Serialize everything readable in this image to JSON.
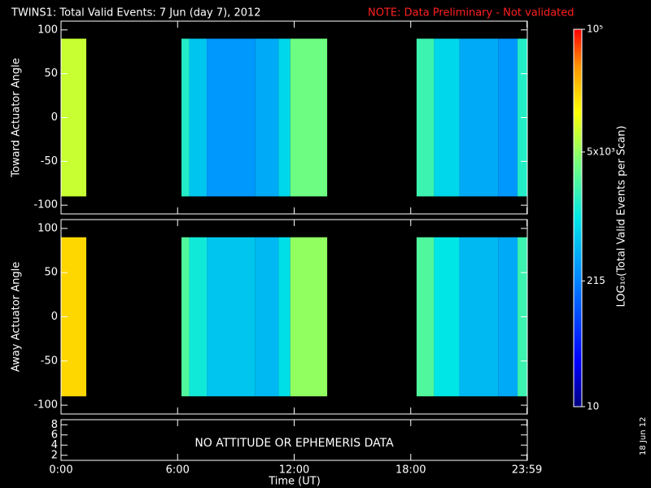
{
  "chart_data": {
    "type": "heatmap",
    "title": "TWINS1: Total Valid Events:  7 Jun (day   7), 2012",
    "note": "NOTE: Data Preliminary - Not validated",
    "stamp": "18 Jun 12",
    "x_label": "Time (UT)",
    "xlim": [
      0,
      24
    ],
    "xticks": [
      {
        "value": 0,
        "label": "0:00"
      },
      {
        "value": 6,
        "label": "6:00"
      },
      {
        "value": 12,
        "label": "12:00"
      },
      {
        "value": 18,
        "label": "18:00"
      },
      {
        "value": 23.98,
        "label": "23:59"
      }
    ],
    "colorbar": {
      "label": "LOG₁₀(Total Valid Events per Scan)",
      "scale": "log",
      "lim": [
        10,
        100000
      ],
      "ticks": [
        10,
        215,
        {
          "value": 5000,
          "label": "5x10³"
        },
        {
          "value": 100000,
          "label": "10⁵"
        }
      ]
    },
    "panels": [
      {
        "y_label": "Toward Actuator Angle",
        "ylim": [
          -110,
          110
        ],
        "yticks": [
          -100,
          -50,
          0,
          50,
          100
        ],
        "angle_range": [
          -90,
          90
        ],
        "bins": [
          0,
          1.3,
          6.2,
          6.6,
          7.5,
          10,
          11.2,
          11.8,
          13.7,
          18.3,
          19.2,
          20.5,
          22.5,
          23.5,
          24
        ],
        "values": [
          8000,
          null,
          1500,
          600,
          300,
          400,
          800,
          3500,
          null,
          2000,
          800,
          400,
          300,
          1500
        ]
      },
      {
        "y_label": "Away Actuator Angle",
        "ylim": [
          -110,
          110
        ],
        "yticks": [
          -100,
          -50,
          0,
          50,
          100
        ],
        "angle_range": [
          -90,
          90
        ],
        "bins": [
          0,
          1.3,
          6.2,
          6.6,
          7.5,
          10,
          11.2,
          11.8,
          13.7,
          18.3,
          19.2,
          20.5,
          22.5,
          23.5,
          24
        ],
        "values": [
          20000,
          null,
          2500,
          1200,
          600,
          500,
          900,
          5000,
          null,
          2500,
          1000,
          500,
          400,
          2000
        ]
      },
      {
        "ylim": [
          1,
          9
        ],
        "yticks": [
          2,
          4,
          6,
          8
        ],
        "message": "NO ATTITUDE OR EPHEMERIS DATA"
      }
    ]
  }
}
